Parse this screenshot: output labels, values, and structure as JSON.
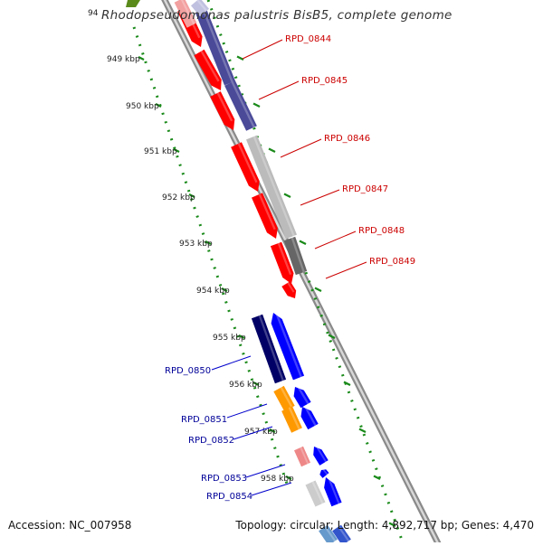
{
  "title": "Rhodopseudomonas palustris BisB5, complete genome",
  "footer": {
    "accession": "Accession: NC_007958",
    "summary": "Topology: circular; Length: 4,892,717 bp; Genes: 4,470"
  },
  "ticks": {
    "partial_label": "94",
    "labels": [
      "949 kbp",
      "950 kbp",
      "951 kbp",
      "952 kbp",
      "953 kbp",
      "954 kbp",
      "955 kbp",
      "956 kbp",
      "957 kbp",
      "958 kbp"
    ]
  },
  "genes": [
    {
      "label": "RPD_0844",
      "color": "#cc0000"
    },
    {
      "label": "RPD_0845",
      "color": "#cc0000"
    },
    {
      "label": "RPD_0846",
      "color": "#cc0000"
    },
    {
      "label": "RPD_0847",
      "color": "#cc0000"
    },
    {
      "label": "RPD_0848",
      "color": "#cc0000"
    },
    {
      "label": "RPD_0849",
      "color": "#cc0000"
    },
    {
      "label": "RPD_0850",
      "color": "#000099"
    },
    {
      "label": "RPD_0851",
      "color": "#000099"
    },
    {
      "label": "RPD_0852",
      "color": "#000099"
    },
    {
      "label": "RPD_0853",
      "color": "#000099"
    },
    {
      "label": "RPD_0854",
      "color": "#000099"
    }
  ],
  "colors": {
    "backbone": "#8a8a8a",
    "tick_green": "#1a8a1a",
    "forward_red": "#ff0000",
    "reverse_blue": "#0000ff",
    "navy": "#000066",
    "purple": "#4a4a99",
    "light_gray": "#bbbbbb",
    "dark_gray": "#666666",
    "orange": "#ff9900",
    "pink": "#ee8888",
    "olive": "#5a8a1a"
  }
}
